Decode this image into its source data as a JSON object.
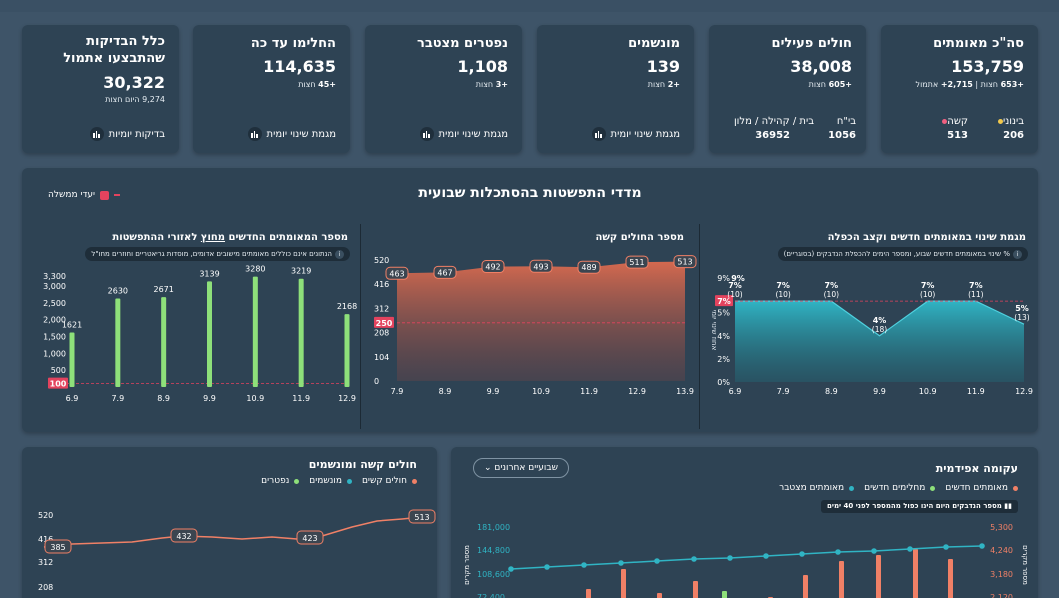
{
  "kpis": [
    {
      "title": "סה\"כ מאומתים",
      "value": "153,759",
      "sub_a_num": "+653",
      "sub_a_txt": "חצות",
      "sub_b_num": "2,715+",
      "sub_b_txt": "אתמול",
      "col1_label": "בינוני",
      "col1_value": "206",
      "col2_label": "קשה",
      "col2_value": "513"
    },
    {
      "title": "חולים פעילים",
      "value": "38,008",
      "sub_num": "+605",
      "sub_txt": "חצות",
      "col1_label": "בי\"ח",
      "col1_value": "1056",
      "col2_label": "בית / קהילה / מלון",
      "col2_value": "36952"
    },
    {
      "title": "מונשמים",
      "value": "139",
      "sub_num": "+2",
      "sub_txt": "חצות",
      "link": "מגמת שינוי יומית"
    },
    {
      "title": "נפטרים מצטבר",
      "value": "1,108",
      "sub_num": "+3",
      "sub_txt": "חצות",
      "link": "מגמת שינוי יומית"
    },
    {
      "title": "החלימו עד כה",
      "value": "114,635",
      "sub_num": "+45",
      "sub_txt": "חצות",
      "link": "מגמת שינוי יומית"
    },
    {
      "title_l1": "כלל הבדיקות",
      "title_l2": "שהתבצעו אתמול",
      "value": "30,322",
      "sub_num": "9,274",
      "sub_txt": "היום חצות",
      "link": "בדיקות יומיות"
    }
  ],
  "section": {
    "title": "מדדי התפשטות בהסתכלות שבועית",
    "legend": "יעדי ממשלה"
  },
  "panels": {
    "growth": {
      "title": "מגמת שינוי במאומתים חדשים וקצב הכפלה",
      "note": "% שינוי במאומתים חדשים שבוע, ומספר הימים להכפלת הנדבקים (בסוגריים)",
      "ylabel": "אחוז שינוי יומי"
    },
    "severe": {
      "title": "מספר החולים קשה"
    },
    "new_cases": {
      "title_pre": "מספר המאומתים החדשים",
      "title_u": "מחוץ",
      "title_post": "לאזורי ההתפשטות",
      "note": "הנתונים אינם כוללים מאומתים מישובים אדומים, מוסדות גריאטריים וחוזרים מחו\"ל"
    }
  },
  "bottom": {
    "right_title": "עקומה אפידמית",
    "right_legend": [
      "מאומתים חדשים",
      "מחלימים חדשים",
      "מאומתים מצטבר"
    ],
    "right_select": "שבועיים אחרונים",
    "right_tip": "מספר הנדבקים היום הינו כפול מהמספר לפני 40 ימים",
    "right_yl_ticks": [
      "181,000",
      "144,800",
      "108,600",
      "72,400"
    ],
    "right_yr_ticks": [
      "5,300",
      "4,240",
      "3,180",
      "2,120"
    ],
    "right_ylabel_left": "מספר מקרים",
    "right_ylabel_right": "מספר מקרים",
    "left_title": "חולים קשה ומונשמים",
    "left_legend": [
      "חולים קשים",
      "מונשמים",
      "נפטרים"
    ],
    "left_ticks": [
      "520",
      "416",
      "312",
      "208"
    ]
  },
  "colors": {
    "accent_orange": "#f08066",
    "accent_teal": "#30b4c4",
    "accent_green": "#8ee07a",
    "accent_red": "#e3435e",
    "legend_yellow": "#f2c94c",
    "legend_pink": "#f06080"
  },
  "chart_data": [
    {
      "type": "area",
      "name": "growth",
      "categories": [
        "6.9",
        "7.9",
        "8.9",
        "9.9",
        "10.9",
        "11.9",
        "12.9"
      ],
      "values": [
        7,
        7,
        7,
        4,
        7,
        7,
        5
      ],
      "labels": [
        "7%",
        "7%",
        "7%",
        "4%",
        "7%",
        "7%",
        "5%"
      ],
      "doubling": [
        "(10)",
        "(10)",
        "(10)",
        "(18)",
        "(10)",
        "(11)",
        "(13)"
      ],
      "extra_label": "9%",
      "target": 7,
      "target_label": "7%",
      "y_ticks": [
        "9%",
        "5%",
        "4%",
        "2%",
        "0%"
      ],
      "ylim": [
        0,
        9
      ]
    },
    {
      "type": "area",
      "name": "severe",
      "categories": [
        "7.9",
        "8.9",
        "9.9",
        "10.9",
        "11.9",
        "12.9",
        "13.9"
      ],
      "values": [
        463,
        467,
        492,
        493,
        489,
        511,
        513
      ],
      "target": 250,
      "y_ticks": [
        520,
        416,
        312,
        208,
        104,
        0
      ],
      "target_label": "250",
      "ylim": [
        0,
        520
      ]
    },
    {
      "type": "bar",
      "name": "new_cases",
      "categories": [
        "6.9",
        "7.9",
        "8.9",
        "9.9",
        "10.9",
        "11.9",
        "12.9"
      ],
      "values": [
        1621,
        2630,
        2671,
        3139,
        3280,
        3219,
        2168
      ],
      "target": 100,
      "target_label": "100",
      "y_ticks": [
        "3,300",
        "3,000",
        "2,500",
        "2,000",
        "1,500",
        "1,000",
        "500"
      ],
      "ylim": [
        0,
        3300
      ]
    },
    {
      "type": "line",
      "name": "severe_bottom",
      "labeled": [
        385,
        432,
        423,
        513
      ]
    }
  ]
}
